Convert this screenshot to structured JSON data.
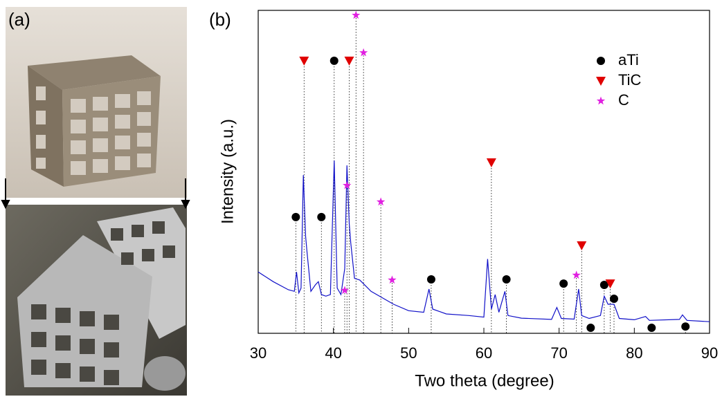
{
  "panel_labels": [
    "(a)",
    "(b)"
  ],
  "chart_data": {
    "type": "line",
    "xlabel": "Two theta (degree)",
    "ylabel": "Intensity (a.u.)",
    "xlim": [
      30,
      90
    ],
    "xticks": [
      30,
      40,
      50,
      60,
      70,
      80,
      90
    ],
    "ylim": [
      0,
      100
    ],
    "color": "#1010c8",
    "x": [
      30,
      32,
      34,
      34.8,
      35.1,
      35.4,
      35.7,
      36.0,
      36.3,
      36.5,
      37,
      37.6,
      38,
      38.4,
      39,
      39.6,
      40.1,
      40.5,
      41,
      41.5,
      41.8,
      42.1,
      42.3,
      42.8,
      43.5,
      45,
      48,
      50,
      52,
      52.7,
      53.2,
      55,
      58,
      60,
      60.5,
      61,
      61.5,
      62,
      62.8,
      63.2,
      65,
      69,
      69.7,
      70.3,
      72,
      72.6,
      73,
      74,
      75.5,
      76,
      76.5,
      77.3,
      78,
      80,
      81.5,
      82,
      86,
      86.4,
      87,
      90
    ],
    "values": [
      19,
      16,
      13.5,
      13,
      19,
      12.5,
      14,
      49,
      30,
      25,
      13,
      15,
      16,
      12,
      11.5,
      12,
      53.5,
      14,
      12,
      20,
      52,
      34,
      28,
      17,
      16.5,
      13,
      9,
      7,
      6.5,
      13.7,
      7.5,
      6,
      5.5,
      5,
      23,
      7.5,
      12,
      6.5,
      13,
      5.5,
      4.7,
      4.3,
      8,
      4.6,
      4.4,
      13.7,
      5.5,
      4.6,
      5.5,
      11.5,
      9,
      9,
      4.6,
      4.2,
      5.2,
      4,
      4.3,
      5.7,
      4,
      3.6
    ],
    "series": [
      {
        "name": "aTi",
        "color": "#000000",
        "marker": "circle",
        "x": [
          35,
          38.4,
          40.1,
          53,
          63,
          70.6,
          76,
          77.3,
          74.2,
          82.3,
          86.8
        ],
        "values": [
          36,
          36,
          84.4,
          16.7,
          16.7,
          15.4,
          15,
          10.7,
          1.7,
          1.7,
          2.1
        ]
      },
      {
        "name": "TiC",
        "color": "#e00000",
        "marker": "triangle",
        "x": [
          36.1,
          42.1,
          61,
          73,
          76.8
        ],
        "values": [
          84.4,
          84.4,
          52.9,
          27.2,
          15.4
        ]
      },
      {
        "name": "C",
        "color": "#e020e0",
        "marker": "star",
        "x": [
          43,
          44,
          41.8,
          46.3,
          47.8,
          41.5,
          72.3
        ],
        "values": [
          98.5,
          86.9,
          45.8,
          40.7,
          16.5,
          13.3,
          18
        ]
      }
    ]
  }
}
